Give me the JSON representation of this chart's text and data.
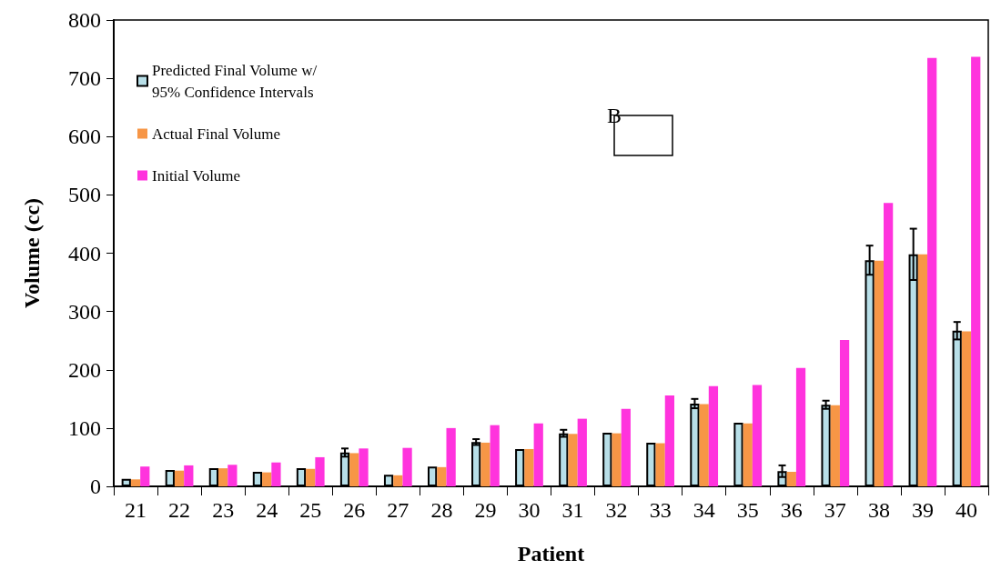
{
  "chart_data": {
    "type": "bar",
    "xlabel": "Patient",
    "ylabel": "Volume (cc)",
    "categories": [
      "21",
      "22",
      "23",
      "24",
      "25",
      "26",
      "27",
      "28",
      "29",
      "30",
      "31",
      "32",
      "33",
      "34",
      "35",
      "36",
      "37",
      "38",
      "39",
      "40"
    ],
    "series": [
      {
        "name": "Predicted Final Volume w/ 95% Confidence Intervals",
        "color": "#b8dfe8",
        "values": [
          13,
          28,
          31,
          25,
          31,
          58,
          20,
          34,
          76,
          64,
          91,
          92,
          75,
          142,
          109,
          26,
          140,
          388,
          398,
          267
        ],
        "errors": [
          null,
          null,
          null,
          null,
          null,
          7,
          null,
          null,
          5,
          null,
          6,
          null,
          null,
          8,
          null,
          10,
          7,
          25,
          44,
          15
        ]
      },
      {
        "name": "Actual Final Volume",
        "color": "#f79646",
        "values": [
          12,
          27,
          31,
          24,
          30,
          57,
          19,
          33,
          75,
          64,
          90,
          91,
          74,
          141,
          108,
          25,
          139,
          387,
          398,
          266
        ]
      },
      {
        "name": "Initial Volume",
        "color": "#ff33dd",
        "values": [
          34,
          36,
          37,
          41,
          50,
          65,
          66,
          100,
          105,
          108,
          116,
          133,
          156,
          172,
          174,
          203,
          251,
          486,
          735,
          737
        ]
      }
    ],
    "ylim": [
      0,
      800
    ],
    "yticks": [
      0,
      100,
      200,
      300,
      400,
      500,
      600,
      700,
      800
    ],
    "grid": false,
    "legend": "top left",
    "annotations": [
      "B"
    ]
  }
}
